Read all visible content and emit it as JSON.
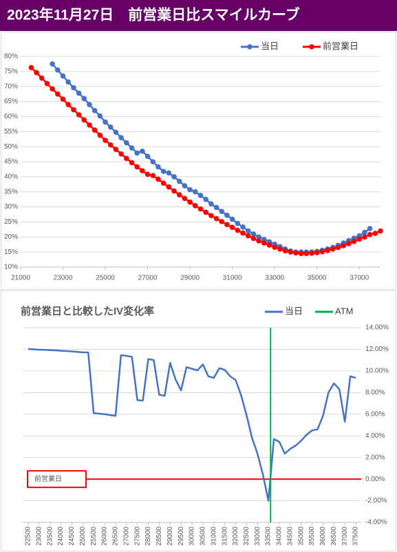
{
  "chart_data": [
    {
      "type": "line",
      "title": "2023年11月27日　前営業日比スマイルカーブ",
      "markers": true,
      "grid": true,
      "x": [
        21500,
        21750,
        22000,
        22250,
        22500,
        22750,
        23000,
        23250,
        23500,
        23750,
        24000,
        24250,
        24500,
        24750,
        25000,
        25250,
        25500,
        25750,
        26000,
        26250,
        26500,
        26750,
        27000,
        27250,
        27500,
        27750,
        28000,
        28250,
        28500,
        28750,
        29000,
        29250,
        29500,
        29750,
        30000,
        30250,
        30500,
        30750,
        31000,
        31250,
        31500,
        31750,
        32000,
        32250,
        32500,
        32750,
        33000,
        33250,
        33500,
        33750,
        34000,
        34250,
        34500,
        34750,
        35000,
        35250,
        35500,
        35750,
        36000,
        36250,
        36500,
        36750,
        37000,
        37250,
        37500,
        37750,
        38000
      ],
      "series": [
        {
          "name": "当日",
          "color": "#4472c4",
          "values": [
            null,
            null,
            null,
            null,
            77.5,
            75.5,
            73.5,
            71.5,
            69.6,
            67.8,
            66.0,
            64.0,
            62.0,
            60.2,
            58.2,
            56.5,
            54.8,
            53.0,
            51.3,
            49.6,
            47.9,
            48.5,
            46.8,
            45.0,
            43.3,
            41.8,
            41.3,
            40.0,
            38.5,
            37.0,
            35.7,
            35.0,
            33.8,
            32.5,
            31.0,
            29.8,
            28.5,
            27.2,
            25.9,
            24.5,
            23.3,
            22.0,
            21.0,
            20.0,
            19.2,
            18.4,
            17.6,
            16.8,
            16.0,
            15.3,
            15.0,
            15.0,
            15.0,
            15.0,
            15.2,
            15.6,
            16.0,
            16.5,
            17.2,
            18.0,
            18.8,
            19.6,
            20.4,
            21.5,
            22.8,
            null,
            null
          ]
        },
        {
          "name": "前営業日",
          "color": "#ff0000",
          "values": [
            76.3,
            74.6,
            72.8,
            71.0,
            69.2,
            67.5,
            65.8,
            64.0,
            62.3,
            60.6,
            58.9,
            57.2,
            55.5,
            53.8,
            52.1,
            50.6,
            49.1,
            47.6,
            46.1,
            44.7,
            43.3,
            42.0,
            40.8,
            40.4,
            39.2,
            37.9,
            36.6,
            35.3,
            34.0,
            32.8,
            31.6,
            30.4,
            29.3,
            28.2,
            27.1,
            26.1,
            25.1,
            24.1,
            23.2,
            22.2,
            21.3,
            20.4,
            19.5,
            18.7,
            18.0,
            17.3,
            16.6,
            16.0,
            15.4,
            15.0,
            14.7,
            14.5,
            14.5,
            14.6,
            14.8,
            15.1,
            15.5,
            16.0,
            16.5,
            17.1,
            17.8,
            18.5,
            19.3,
            20.0,
            20.8,
            21.2,
            22.0
          ]
        }
      ],
      "xlim": [
        21000,
        38000
      ],
      "xticks": [
        21000,
        23000,
        25000,
        27000,
        29000,
        31000,
        33000,
        35000,
        37000
      ],
      "ylim": [
        10,
        80
      ],
      "yticks": [
        {
          "value": 10,
          "label": "10%"
        },
        {
          "value": 15,
          "label": "15%"
        },
        {
          "value": 20,
          "label": "20%"
        },
        {
          "value": 25,
          "label": "25%"
        },
        {
          "value": 30,
          "label": "30%"
        },
        {
          "value": 35,
          "label": "35%"
        },
        {
          "value": 40,
          "label": "40%"
        },
        {
          "value": 45,
          "label": "45%"
        },
        {
          "value": 50,
          "label": "50%"
        },
        {
          "value": 55,
          "label": "55%"
        },
        {
          "value": 60,
          "label": "60%"
        },
        {
          "value": 65,
          "label": "65%"
        },
        {
          "value": 70,
          "label": "70%"
        },
        {
          "value": 75,
          "label": "75%"
        },
        {
          "value": 80,
          "label": "80%"
        }
      ],
      "y_axis_side": "left"
    },
    {
      "type": "line",
      "title": "前営業日と比較したIV変化率",
      "markers": false,
      "grid": true,
      "x": [
        22500,
        22750,
        23000,
        23250,
        23500,
        23750,
        24000,
        24250,
        24500,
        24750,
        25000,
        25250,
        25500,
        25750,
        26000,
        26250,
        26500,
        26750,
        27000,
        27250,
        27500,
        27750,
        28000,
        28250,
        28500,
        28750,
        29000,
        29250,
        29500,
        29750,
        30000,
        30250,
        30500,
        30750,
        31000,
        31250,
        31500,
        31750,
        32000,
        32250,
        32500,
        32750,
        33000,
        33250,
        33500,
        33750,
        34000,
        34250,
        34500,
        34750,
        35000,
        35250,
        35500,
        35750,
        36000,
        36250,
        36500,
        36750,
        37000,
        37250,
        37500
      ],
      "series": [
        {
          "name": "当日",
          "color": "#4472c4",
          "values": [
            12.02,
            12.0,
            11.96,
            11.95,
            11.92,
            11.9,
            11.86,
            11.84,
            11.8,
            11.76,
            11.72,
            11.7,
            6.1,
            6.05,
            6.0,
            5.92,
            5.85,
            11.45,
            11.4,
            11.3,
            7.3,
            7.25,
            11.1,
            11.0,
            7.8,
            7.7,
            10.75,
            9.2,
            8.2,
            10.35,
            10.2,
            10.05,
            10.6,
            9.5,
            9.35,
            10.25,
            10.1,
            9.5,
            9.15,
            7.75,
            5.9,
            3.8,
            2.35,
            0.4,
            -2.0,
            3.7,
            3.45,
            2.35,
            2.8,
            3.1,
            3.55,
            4.1,
            4.5,
            4.6,
            5.85,
            8.0,
            8.85,
            8.3,
            5.3,
            9.5,
            9.35
          ]
        }
      ],
      "reference_lines": [
        {
          "name": "ATM",
          "x": 33600,
          "color": "#00b050"
        }
      ],
      "baseline": {
        "label": "前営業日",
        "y": 0,
        "color": "#ff0000"
      },
      "xlim": [
        22250,
        37750
      ],
      "xticks": [
        22500,
        23000,
        23500,
        24000,
        24500,
        25000,
        25500,
        26000,
        26500,
        27000,
        27500,
        28000,
        28500,
        29000,
        29500,
        30000,
        30500,
        31000,
        31500,
        32000,
        32500,
        33000,
        33500,
        34000,
        34500,
        35000,
        35500,
        36000,
        36500,
        37000,
        37500
      ],
      "ylim": [
        -4,
        14
      ],
      "yticks": [
        {
          "value": -4,
          "label": "-4.00%"
        },
        {
          "value": -2,
          "label": "-2.00%"
        },
        {
          "value": 0,
          "label": "0.00%"
        },
        {
          "value": 2,
          "label": "2.00%"
        },
        {
          "value": 4,
          "label": "4.00%"
        },
        {
          "value": 6,
          "label": "6.00%"
        },
        {
          "value": 8,
          "label": "8.00%"
        },
        {
          "value": 10,
          "label": "10.00%"
        },
        {
          "value": 12,
          "label": "12.00%"
        },
        {
          "value": 14,
          "label": "14.00%"
        }
      ],
      "y_axis_side": "right"
    }
  ]
}
